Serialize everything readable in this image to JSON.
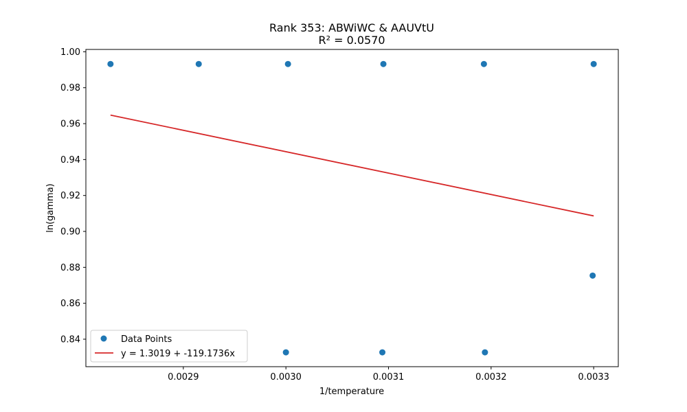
{
  "chart_data": {
    "type": "scatter",
    "title": "Rank 353: ABWiWC & AAUVtU",
    "subtitle": "R² = 0.0570",
    "xlabel": "1/temperature",
    "ylabel": "ln(gamma)",
    "xlim": [
      0.002805,
      0.003324
    ],
    "ylim": [
      0.8247,
      1.0013
    ],
    "x_ticks": [
      0.0029,
      0.003,
      0.0031,
      0.0032,
      0.0033
    ],
    "x_tick_labels": [
      "0.0029",
      "0.0030",
      "0.0031",
      "0.0032",
      "0.0033"
    ],
    "y_ticks": [
      0.84,
      0.86,
      0.88,
      0.9,
      0.92,
      0.94,
      0.96,
      0.98,
      1.0
    ],
    "y_tick_labels": [
      "0.84",
      "0.86",
      "0.88",
      "0.90",
      "0.92",
      "0.94",
      "0.96",
      "0.98",
      "1.00"
    ],
    "grid": false,
    "legend_position": "lower-left",
    "series": [
      {
        "name": "Data Points",
        "kind": "scatter",
        "color": "#1f77b4",
        "points": [
          [
            0.002829,
            0.9932
          ],
          [
            0.002915,
            0.9932
          ],
          [
            0.003002,
            0.9932
          ],
          [
            0.003095,
            0.9932
          ],
          [
            0.003193,
            0.9932
          ],
          [
            0.0033,
            0.9932
          ],
          [
            0.003,
            0.8327
          ],
          [
            0.003094,
            0.8327
          ],
          [
            0.003194,
            0.8327
          ],
          [
            0.003299,
            0.8754
          ]
        ]
      },
      {
        "name": "y = 1.3019 + -119.1736x",
        "kind": "line",
        "color": "#d62728",
        "intercept": 1.3019,
        "slope": -119.1736,
        "x_range": [
          0.002829,
          0.0033
        ]
      }
    ]
  }
}
